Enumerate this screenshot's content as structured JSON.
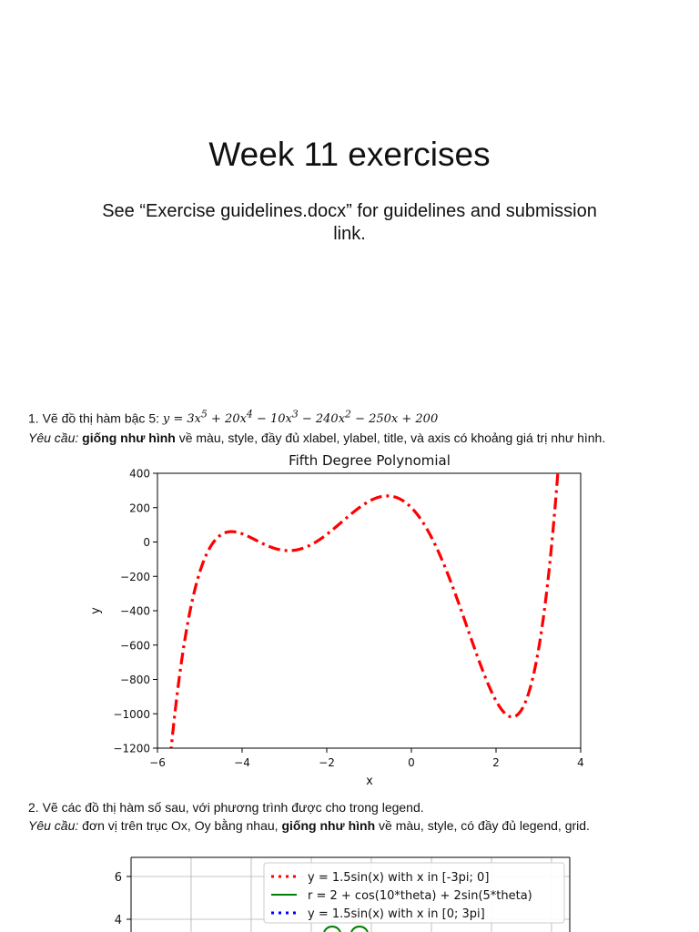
{
  "header": {
    "title": "Week 11 exercises",
    "subtitle": "See “Exercise guidelines.docx” for guidelines and submission link."
  },
  "exercise1": {
    "number": "1.",
    "prompt": "Vẽ đồ thị hàm bậc 5:",
    "equation": {
      "lhs": "y = 3x",
      "terms": [
        {
          "exp": "5",
          "after": " + 20x"
        },
        {
          "exp": "4",
          "after": " − 10x"
        },
        {
          "exp": "3",
          "after": " − 240x"
        },
        {
          "exp": "2",
          "after": " − 250x + 200"
        }
      ]
    },
    "req_label": "Yêu cầu:",
    "req_bold": "giống như hình",
    "req_rest": "về màu, style, đầy đủ xlabel, ylabel, title, và axis có khoảng giá trị như hình."
  },
  "exercise2": {
    "number": "2.",
    "prompt": "Vẽ các đồ thị hàm số sau, với phương trình được cho trong legend.",
    "req_label": "Yêu cầu:",
    "req_mid": "đơn vị trên trục Ox, Oy bằng nhau,",
    "req_bold": "giống như hình",
    "req_rest": "về màu, style, có đầy đủ legend, grid."
  },
  "chart_data": [
    {
      "type": "line",
      "title": "Fifth Degree Polynomial",
      "xlabel": "x",
      "ylabel": "y",
      "xlim": [
        -6,
        4
      ],
      "ylim": [
        -1200,
        400
      ],
      "xticks": [
        "−6",
        "−4",
        "−2",
        "0",
        "2",
        "4"
      ],
      "yticks": [
        "400",
        "200",
        "0",
        "−200",
        "−400",
        "−600",
        "−800",
        "−1000",
        "−1200"
      ],
      "series": [
        {
          "color": "#ff0000",
          "style": "dash-dot",
          "coefficients": [
            3,
            20,
            -10,
            -240,
            -250,
            200
          ],
          "x_range": [
            -5.7,
            3.5
          ]
        }
      ]
    },
    {
      "type": "line",
      "yticks_visible": [
        "6",
        "4"
      ],
      "grid": true,
      "legend": "top-right",
      "series": [
        {
          "name": "y = 1.5sin(x) with x in [-3pi; 0]",
          "color": "#ff0000",
          "style": "dotted"
        },
        {
          "name": "r = 2 + cos(10*theta) + 2sin(5*theta)",
          "color": "#008000",
          "style": "solid"
        },
        {
          "name": "y = 1.5sin(x) with x in [0; 3pi]",
          "color": "#0000ff",
          "style": "dotted"
        }
      ]
    }
  ]
}
